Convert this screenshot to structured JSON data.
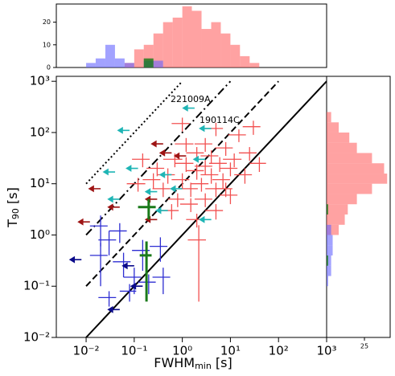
{
  "chart_data": [
    {
      "type": "scatter",
      "xlabel": {
        "main": "FWHM",
        "sub": "min",
        "rest": " [s]"
      },
      "ylabel": {
        "main": "T",
        "sub": "90",
        "rest": " [s]"
      },
      "log_x": true,
      "log_y": true,
      "xlim": [
        0.0024,
        1000
      ],
      "ylim": [
        0.01,
        1250
      ],
      "xticks": [
        {
          "value": 0.01,
          "label": "10⁻²"
        },
        {
          "value": 0.1,
          "label": "10⁻¹"
        },
        {
          "value": 1,
          "label": "10⁰"
        },
        {
          "value": 10,
          "label": "10¹"
        },
        {
          "value": 100,
          "label": "10²"
        },
        {
          "value": 1000,
          "label": "10³"
        }
      ],
      "yticks": [
        {
          "value": 0.01,
          "label": "10⁻²"
        },
        {
          "value": 0.1,
          "label": "10⁻¹"
        },
        {
          "value": 1,
          "label": "10⁰"
        },
        {
          "value": 10,
          "label": "10¹"
        },
        {
          "value": 100,
          "label": "10²"
        },
        {
          "value": 1000,
          "label": "10³"
        }
      ],
      "annotations": [
        "221009A",
        "190114C"
      ],
      "lines": [
        {
          "x": [
            0.01,
            1000
          ],
          "y": [
            0.01,
            1000
          ],
          "dash": "solid"
        },
        {
          "x": [
            0.01,
            100
          ],
          "y": [
            0.1,
            1000
          ],
          "dash": "dashed"
        },
        {
          "x": [
            0.01,
            10
          ],
          "y": [
            1,
            1000
          ],
          "dash": "dashdot"
        },
        {
          "x": [
            0.01,
            1
          ],
          "y": [
            10,
            1000
          ],
          "dash": "dotted"
        }
      ],
      "series": [
        {
          "marker": "cross",
          "color": "#f25050",
          "x": [
            0.3,
            0.5,
            0.7,
            1,
            1.2,
            1.5,
            2,
            2,
            2.5,
            3,
            3,
            4,
            4,
            5,
            5,
            6,
            7,
            8,
            10,
            10,
            12,
            15,
            20,
            25,
            30,
            0.8,
            1.5,
            0.4,
            0.6,
            2,
            3,
            0.25,
            0.15,
            0.12,
            1,
            5,
            8,
            40,
            1.2,
            2.2
          ],
          "y": [
            20,
            15,
            30,
            12,
            25,
            8,
            40,
            18,
            10,
            22,
            60,
            15,
            35,
            8,
            120,
            25,
            12,
            50,
            20,
            6,
            30,
            90,
            15,
            40,
            130,
            5,
            4,
            8,
            3,
            2,
            5,
            12,
            30,
            10,
            150,
            3,
            8,
            25,
            60,
            0.8
          ],
          "xerr": [
            0.12,
            0.2,
            0.3,
            0.4,
            0.5,
            0.6,
            0.8,
            0.8,
            1,
            1.2,
            1.2,
            1.6,
            1.6,
            2,
            2,
            2.4,
            2.8,
            3.2,
            4,
            4,
            5,
            6,
            8,
            10,
            12,
            0.3,
            0.6,
            0.16,
            0.24,
            0.8,
            1.2,
            0.1,
            0.06,
            0.05,
            0.4,
            2,
            3,
            15,
            0.5,
            0.9
          ],
          "yerr": [
            6,
            5,
            9,
            4,
            8,
            2.5,
            12,
            6,
            3,
            7,
            18,
            5,
            10,
            2.5,
            35,
            8,
            4,
            15,
            6,
            2,
            9,
            25,
            5,
            12,
            40,
            1.5,
            1.2,
            2.5,
            1,
            0.6,
            1.5,
            4,
            9,
            3,
            45,
            1,
            2.5,
            8,
            18,
            0.75
          ]
        },
        {
          "marker": "cross",
          "color": "#2d2dd2",
          "x": [
            0.02,
            0.03,
            0.05,
            0.02,
            0.03,
            0.06,
            0.1,
            0.2,
            0.15,
            0.08,
            0.35,
            0.4
          ],
          "y": [
            1.5,
            0.8,
            1.2,
            0.4,
            0.06,
            0.3,
            0.15,
            0.12,
            0.5,
            0.08,
            0.6,
            0.15
          ],
          "xerr": [
            0.008,
            0.012,
            0.02,
            0.008,
            0.012,
            0.024,
            0.04,
            0.08,
            0.06,
            0.03,
            0.14,
            0.16
          ],
          "yerr": [
            0.9,
            0.4,
            0.5,
            0.3,
            0.02,
            0.15,
            0.08,
            0.05,
            0.3,
            0.03,
            0.3,
            0.08
          ]
        },
        {
          "marker": "arrow",
          "color": "#0a0a8a",
          "x": [
            0.008,
            0.05,
            0.1,
            0.15
          ],
          "y": [
            0.33,
            0.035,
            0.25,
            0.1
          ]
        },
        {
          "marker": "arrow",
          "color": "#9e1515",
          "x": [
            0.012,
            0.05,
            0.3,
            0.3,
            0.6,
            0.4,
            1.2,
            0.02
          ],
          "y": [
            1.8,
            3.5,
            2,
            5,
            40,
            60,
            35,
            8
          ]
        },
        {
          "marker": "arrow",
          "color": "#1fb5b5",
          "x": [
            0.08,
            0.04,
            0.05,
            0.12,
            0.5,
            1.8,
            4,
            4,
            1,
            0.3,
            0.6,
            3
          ],
          "y": [
            110,
            17,
            5,
            20,
            3,
            300,
            120,
            2,
            8,
            7,
            15,
            30
          ]
        },
        {
          "marker": "cross",
          "color": "#1a7a1a",
          "x": [
            0.2,
            0.18
          ],
          "y": [
            3.5,
            0.4
          ],
          "xerr": [
            0.08,
            0.05
          ],
          "yerr": [
            1.5,
            0.35
          ]
        }
      ]
    },
    {
      "type": "histogram",
      "orientation": "vertical",
      "log_x": true,
      "xlim": [
        0.0024,
        1000
      ],
      "ylim": [
        0,
        28
      ],
      "yticks": [
        0,
        10,
        20
      ],
      "bins": [
        0.01,
        0.0158,
        0.0251,
        0.0398,
        0.0631,
        0.1,
        0.158,
        0.251,
        0.398,
        0.631,
        1,
        1.58,
        2.51,
        3.98,
        6.31,
        10,
        15.8,
        25.1,
        39.8
      ],
      "series": [
        {
          "color": "rgba(255,100,100,0.6)",
          "values": [
            0,
            0,
            0,
            0,
            2,
            8,
            10,
            15,
            20,
            22,
            27,
            25,
            17,
            20,
            15,
            10,
            5,
            2
          ]
        },
        {
          "color": "rgba(100,100,255,0.6)",
          "values": [
            2,
            4,
            10,
            4,
            2,
            0,
            3,
            3,
            0,
            0,
            0,
            0,
            0,
            0,
            0,
            0,
            0,
            0
          ]
        },
        {
          "color": "rgba(20,120,20,0.8)",
          "values": [
            0,
            0,
            0,
            0,
            0,
            0,
            4,
            0,
            0,
            0,
            0,
            0,
            0,
            0,
            0,
            0,
            0,
            0
          ]
        }
      ]
    },
    {
      "type": "histogram",
      "orientation": "horizontal",
      "log_y": true,
      "ylim": [
        0.01,
        1250
      ],
      "xlim": [
        0,
        42
      ],
      "xticks": [
        25
      ],
      "bins": [
        0.1,
        0.158,
        0.251,
        0.398,
        0.631,
        1,
        1.58,
        2.51,
        3.98,
        6.31,
        10,
        15.8,
        25.1,
        39.8,
        63.1,
        100,
        158,
        251,
        398,
        631,
        1000
      ],
      "series": [
        {
          "color": "rgba(255,100,100,0.6)",
          "values": [
            0,
            0,
            0,
            0,
            0,
            8,
            12,
            14,
            20,
            30,
            40,
            38,
            30,
            20,
            15,
            8,
            3,
            0,
            0,
            0
          ]
        },
        {
          "color": "rgba(100,100,255,0.6)",
          "values": [
            1,
            3,
            3,
            4,
            4,
            3,
            0,
            0,
            0,
            0,
            0,
            0,
            0,
            0,
            0,
            0,
            0,
            0,
            0,
            0
          ]
        },
        {
          "color": "rgba(20,120,20,0.8)",
          "values": [
            0,
            0,
            1,
            0,
            0,
            0,
            0,
            1,
            0,
            0,
            0,
            0,
            0,
            0,
            0,
            0,
            0,
            0,
            0,
            0
          ]
        }
      ]
    }
  ]
}
